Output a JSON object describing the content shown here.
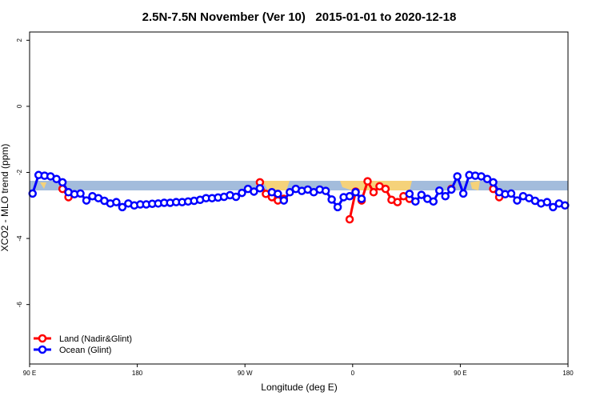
{
  "chart_data": {
    "type": "line",
    "title": "2.5N-7.5N November (Ver 10)   2015-01-01 to 2020-12-18",
    "x_label": "Longitude (deg E)",
    "y_label": "XCO2 - MLO trend (ppm)",
    "x": [
      92.5,
      97.5,
      102.5,
      107.5,
      112.5,
      117.5,
      122.5,
      127.5,
      132.5,
      137.5,
      142.5,
      147.5,
      152.5,
      157.5,
      162.5,
      167.5,
      172.5,
      177.5,
      182.5,
      187.5,
      192.5,
      197.5,
      202.5,
      207.5,
      212.5,
      217.5,
      222.5,
      227.5,
      232.5,
      237.5,
      242.5,
      247.5,
      252.5,
      257.5,
      262.5,
      267.5,
      272.5,
      277.5,
      282.5,
      287.5,
      292.5,
      297.5,
      302.5,
      307.5,
      312.5,
      317.5,
      322.5,
      327.5,
      332.5,
      337.5,
      342.5,
      347.5,
      352.5,
      357.5,
      362.5,
      367.5,
      372.5,
      377.5,
      382.5,
      387.5,
      392.5,
      397.5,
      402.5,
      407.5,
      412.5,
      417.5,
      422.5,
      427.5,
      432.5,
      437.5,
      442.5,
      447.5,
      452.5,
      457.5,
      462.5,
      467.5,
      472.5,
      477.5,
      482.5,
      487.5,
      492.5,
      497.5,
      502.5,
      507.5,
      512.5,
      517.5,
      522.5,
      527.5,
      532.5,
      537.5
    ],
    "series": [
      {
        "name": "Land (Nadir&Glint)",
        "color": "#ff0000",
        "values": [
          null,
          null,
          null,
          null,
          null,
          -2.5,
          -2.75,
          null,
          null,
          null,
          null,
          null,
          null,
          null,
          null,
          null,
          null,
          null,
          null,
          null,
          null,
          null,
          null,
          null,
          null,
          null,
          null,
          null,
          null,
          null,
          null,
          null,
          null,
          null,
          null,
          null,
          null,
          null,
          -2.3,
          -2.65,
          -2.75,
          -2.85,
          -2.8,
          null,
          null,
          null,
          null,
          null,
          null,
          null,
          null,
          null,
          null,
          -3.42,
          -2.58,
          -2.85,
          -2.27,
          -2.6,
          -2.42,
          -2.5,
          -2.83,
          -2.9,
          -2.72,
          -2.8,
          null,
          null,
          null,
          null,
          null,
          null,
          -2.5,
          null,
          null,
          null,
          null,
          null,
          null,
          -2.5,
          -2.75,
          null,
          null,
          null,
          null,
          null,
          null,
          null,
          null,
          null,
          null,
          null
        ]
      },
      {
        "name": "Ocean (Glint)",
        "color": "#0000ff",
        "values": [
          -2.64,
          -2.08,
          -2.1,
          -2.12,
          -2.2,
          -2.3,
          -2.6,
          -2.66,
          -2.64,
          -2.85,
          -2.72,
          -2.78,
          -2.86,
          -2.94,
          -2.9,
          -3.05,
          -2.94,
          -3.0,
          -2.97,
          -2.97,
          -2.95,
          -2.94,
          -2.92,
          -2.92,
          -2.9,
          -2.9,
          -2.88,
          -2.86,
          -2.83,
          -2.78,
          -2.78,
          -2.76,
          -2.74,
          -2.69,
          -2.74,
          -2.62,
          -2.5,
          -2.58,
          -2.48,
          null,
          -2.6,
          -2.65,
          -2.85,
          -2.6,
          -2.5,
          -2.56,
          -2.52,
          -2.6,
          -2.52,
          -2.56,
          -2.82,
          -3.05,
          -2.75,
          -2.72,
          -2.6,
          -2.8,
          null,
          null,
          null,
          null,
          null,
          null,
          null,
          -2.65,
          -2.88,
          -2.68,
          -2.8,
          -2.88,
          -2.55,
          -2.72,
          -2.52,
          -2.12,
          -2.64,
          -2.08,
          -2.1,
          -2.12,
          -2.2,
          -2.3,
          -2.6,
          -2.66,
          -2.64,
          -2.85,
          -2.72,
          -2.78,
          -2.86,
          -2.94,
          -2.9,
          -3.05,
          -2.94,
          -3.0
        ]
      }
    ],
    "xlim": [
      90,
      540
    ],
    "xticks": [
      {
        "value": 90,
        "label": "90 E"
      },
      180,
      {
        "value": 270,
        "label": "90 W"
      },
      {
        "value": 360,
        "label": "0"
      },
      {
        "value": 450,
        "label": "90 E"
      },
      {
        "value": 540,
        "label": "180"
      }
    ],
    "ylim": [
      -7.8,
      2.25
    ],
    "yticks": [
      -6,
      -4,
      -2,
      0,
      2
    ],
    "legend": "bottom-left"
  }
}
